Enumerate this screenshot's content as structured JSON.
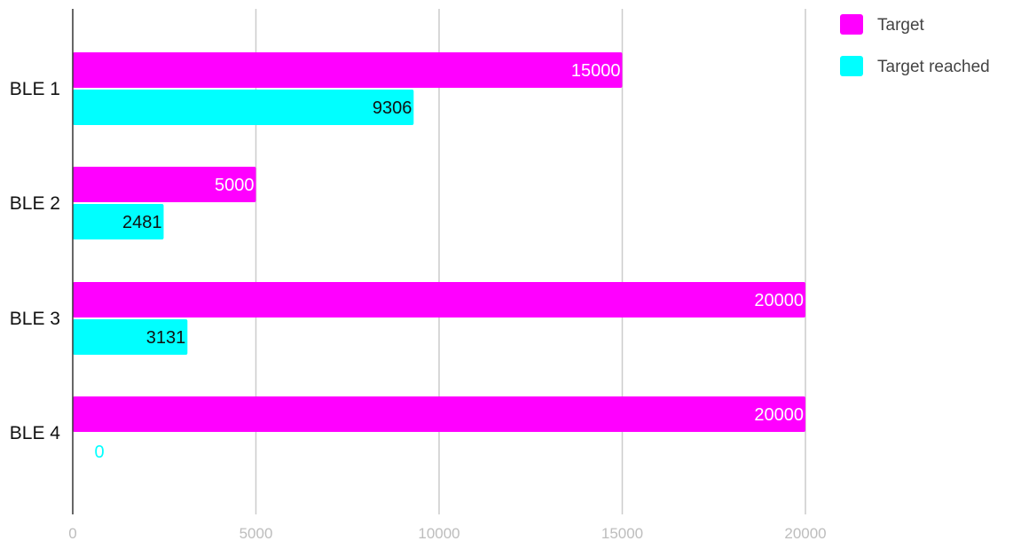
{
  "chart_data": {
    "type": "bar",
    "orientation": "horizontal",
    "title": "",
    "xlabel": "",
    "ylabel": "",
    "categories": [
      "BLE 1",
      "BLE 2",
      "BLE 3",
      "BLE 4"
    ],
    "series": [
      {
        "name": "Target",
        "values": [
          15000,
          5000,
          20000,
          20000
        ],
        "color": "#ff00ff",
        "label_color": "#ffffff"
      },
      {
        "name": "Target reached",
        "values": [
          9306,
          2481,
          3131,
          0
        ],
        "color": "#00ffff",
        "label_color": "#111111"
      }
    ],
    "xlim": [
      0,
      20000
    ],
    "xticks": [
      "0",
      "5000",
      "10000",
      "15000",
      "20000"
    ],
    "grid": true,
    "legend_position": "top-right",
    "gridline_color": "#cccccc",
    "axis_color": "#333333"
  }
}
